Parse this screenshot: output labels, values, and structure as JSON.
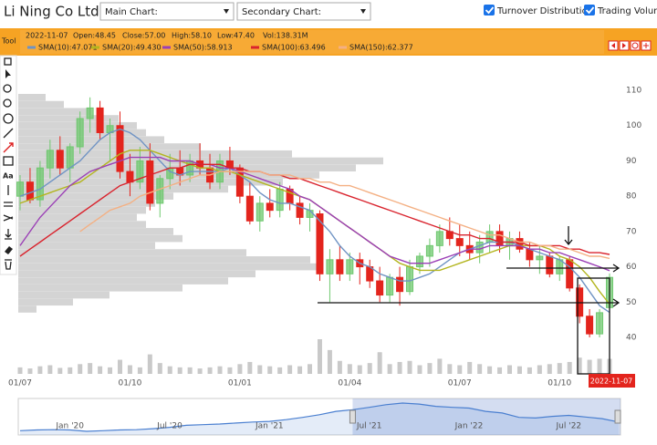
{
  "header": {
    "title": "Li Ning Co Ltd",
    "main_chart": "Main Chart:",
    "secondary_chart": "Secondary Chart:",
    "turnover_distribution": "Turnover Distribution",
    "trading_volume": "Trading Volume"
  },
  "toolbar": {
    "label": "Tool",
    "text_tool": "Aa"
  },
  "info_bar": {
    "date": "2022-11-07",
    "open": "Open:48.45",
    "close": "Close:57.00",
    "high": "High:58.10",
    "low": "Low:47.40",
    "volume": "Vol:138.31M"
  },
  "chart_data": [
    {
      "type": "candlestick",
      "categories": [
        "01/07",
        null,
        null,
        null,
        null,
        null,
        null,
        null,
        null,
        null,
        null,
        "01/10",
        null,
        null,
        null,
        null,
        null,
        null,
        null,
        null,
        null,
        null,
        "01/01",
        null,
        null,
        null,
        null,
        null,
        null,
        null,
        null,
        null,
        null,
        "01/04",
        null,
        null,
        null,
        null,
        null,
        null,
        null,
        null,
        null,
        null,
        "01/07",
        null,
        null,
        null,
        null,
        null,
        null,
        null,
        null,
        null,
        "01/10",
        null,
        null,
        null,
        null,
        null
      ],
      "open": [
        80,
        84,
        79,
        88,
        93,
        88,
        94,
        102,
        105,
        98,
        100,
        87,
        84,
        90,
        78,
        85,
        88,
        86,
        90,
        88,
        84,
        90,
        88,
        80,
        73,
        78,
        76,
        82,
        78,
        74,
        75,
        58,
        62,
        58,
        62,
        60,
        56,
        52,
        57,
        53,
        60,
        63,
        66,
        70,
        68,
        66,
        64,
        67,
        70,
        66,
        68,
        65,
        62,
        63,
        58,
        62,
        54,
        46,
        41,
        48.45
      ],
      "high": [
        86,
        88,
        90,
        96,
        97,
        95,
        104,
        108,
        107,
        102,
        104,
        92,
        94,
        95,
        86,
        92,
        93,
        92,
        95,
        92,
        92,
        94,
        89,
        84,
        80,
        82,
        84,
        83,
        80,
        78,
        76,
        65,
        66,
        64,
        64,
        62,
        60,
        58,
        60,
        62,
        64,
        68,
        72,
        74,
        72,
        70,
        69,
        72,
        72,
        70,
        70,
        67,
        66,
        64,
        63,
        63,
        55,
        48,
        48,
        58.1
      ],
      "low": [
        76,
        78,
        77,
        85,
        86,
        84,
        92,
        98,
        96,
        90,
        85,
        80,
        82,
        76,
        74,
        82,
        83,
        84,
        86,
        82,
        82,
        86,
        78,
        72,
        70,
        74,
        74,
        76,
        72,
        70,
        56,
        50,
        56,
        56,
        55,
        54,
        50,
        50,
        49,
        52,
        58,
        60,
        64,
        66,
        63,
        62,
        61,
        64,
        64,
        62,
        64,
        60,
        58,
        57,
        56,
        53,
        44,
        40,
        40,
        47.4
      ],
      "close": [
        84,
        79,
        88,
        93,
        88,
        94,
        102,
        105,
        98,
        100,
        87,
        84,
        90,
        78,
        85,
        88,
        86,
        90,
        88,
        84,
        90,
        88,
        80,
        73,
        78,
        76,
        82,
        78,
        74,
        76,
        58,
        62,
        58,
        62,
        60,
        56,
        52,
        57,
        53,
        60,
        63,
        66,
        70,
        68,
        66,
        64,
        67,
        70,
        66,
        68,
        65,
        62,
        63,
        58,
        62,
        54,
        46,
        41,
        47,
        57
      ],
      "up_color": "#6fc86f",
      "down_color": "#e3241d",
      "ylim": [
        30,
        112
      ],
      "yticks": [
        40,
        50,
        60,
        70,
        80,
        90,
        100,
        110
      ],
      "series": [
        {
          "name": "SMA(10):47.071",
          "color": "#6f93c4",
          "values": [
            80,
            81,
            82,
            84,
            86,
            88,
            90,
            93,
            96,
            98,
            99,
            98,
            96,
            93,
            90,
            87,
            86,
            87,
            87,
            87,
            87,
            88,
            86,
            84,
            81,
            79,
            78,
            78,
            77,
            76,
            73,
            70,
            66,
            63,
            61,
            60,
            58,
            57,
            56,
            56,
            57,
            58,
            60,
            62,
            64,
            65,
            66,
            67,
            67,
            67,
            66,
            65,
            64,
            63,
            62,
            60,
            57,
            53,
            49,
            47.071
          ]
        },
        {
          "name": "SMA(20):49.430",
          "color": "#b3b51e",
          "values": [
            78,
            79,
            80,
            81,
            82,
            83,
            84,
            86,
            88,
            90,
            92,
            93,
            93,
            93,
            92,
            91,
            90,
            89,
            88,
            88,
            87,
            87,
            86,
            85,
            84,
            83,
            82,
            81,
            80,
            79,
            77,
            75,
            73,
            71,
            69,
            67,
            65,
            63,
            61,
            60,
            59,
            59,
            59,
            60,
            61,
            62,
            63,
            64,
            65,
            66,
            66,
            66,
            66,
            65,
            63,
            62,
            60,
            57,
            53,
            49.43
          ]
        },
        {
          "name": "SMA(50):58.913",
          "color": "#9b3fb6",
          "values": [
            66,
            70,
            74,
            77,
            80,
            83,
            85,
            87,
            88,
            89,
            90,
            91,
            91,
            91,
            91,
            90,
            90,
            90,
            89,
            89,
            88,
            88,
            87,
            86,
            85,
            84,
            83,
            82,
            80,
            79,
            77,
            75,
            73,
            71,
            69,
            67,
            65,
            63,
            62,
            61,
            61,
            61,
            62,
            63,
            64,
            65,
            65,
            66,
            66,
            66,
            66,
            65,
            65,
            64,
            64,
            63,
            62,
            61,
            60,
            58.913
          ]
        },
        {
          "name": "SMA(100):63.496",
          "color": "#d9232d",
          "values": [
            63,
            65,
            67,
            69,
            71,
            73,
            75,
            77,
            79,
            81,
            83,
            84,
            85,
            86,
            87,
            88,
            88,
            89,
            89,
            89,
            89,
            88,
            88,
            87,
            87,
            86,
            86,
            85,
            85,
            84,
            83,
            82,
            81,
            80,
            79,
            78,
            77,
            76,
            75,
            74,
            73,
            72,
            71,
            70,
            69,
            69,
            68,
            68,
            67,
            67,
            67,
            66,
            66,
            66,
            66,
            65,
            65,
            64,
            64,
            63.496
          ]
        },
        {
          "name": "SMA(150):62.377",
          "color": "#f4b083",
          "values": [
            null,
            null,
            null,
            null,
            null,
            null,
            70,
            72,
            74,
            76,
            77,
            78,
            80,
            81,
            82,
            83,
            84,
            85,
            86,
            86,
            87,
            87,
            87,
            87,
            87,
            86,
            86,
            86,
            85,
            85,
            84,
            84,
            83,
            83,
            82,
            81,
            80,
            79,
            78,
            77,
            76,
            75,
            74,
            73,
            72,
            71,
            70,
            69,
            69,
            68,
            67,
            67,
            66,
            66,
            65,
            65,
            64,
            63,
            63,
            62.377
          ]
        }
      ],
      "volume": {
        "color": "#c9c9c9",
        "values": [
          60,
          50,
          70,
          80,
          55,
          60,
          90,
          100,
          70,
          60,
          130,
          80,
          60,
          180,
          100,
          70,
          60,
          60,
          50,
          60,
          70,
          60,
          90,
          110,
          80,
          70,
          60,
          80,
          70,
          90,
          320,
          220,
          120,
          90,
          80,
          100,
          200,
          90,
          110,
          120,
          80,
          100,
          140,
          90,
          80,
          110,
          90,
          70,
          60,
          80,
          70,
          60,
          80,
          90,
          100,
          110,
          150,
          130,
          140,
          138.31
        ]
      },
      "turnover_distribution": {
        "color": "#d4d4d4",
        "prices": [
          48,
          50,
          52,
          54,
          56,
          58,
          60,
          62,
          64,
          66,
          68,
          70,
          72,
          74,
          76,
          78,
          80,
          82,
          84,
          86,
          88,
          90,
          92,
          94,
          96,
          98,
          100,
          102,
          104,
          106,
          108
        ],
        "values": [
          20,
          60,
          100,
          180,
          230,
          260,
          330,
          320,
          250,
          150,
          180,
          170,
          140,
          130,
          140,
          150,
          170,
          230,
          290,
          330,
          370,
          400,
          300,
          200,
          160,
          140,
          130,
          110,
          80,
          50,
          30
        ]
      }
    },
    {
      "type": "area",
      "categories": [
        null,
        null,
        null,
        "Jan '20",
        null,
        null,
        null,
        null,
        null,
        "Jul '20",
        null,
        null,
        null,
        null,
        null,
        "Jan '21",
        null,
        null,
        null,
        null,
        null,
        "Jul '21",
        null,
        null,
        null,
        null,
        null,
        "Jan '22",
        null,
        null,
        null,
        null,
        null,
        "Jul '22",
        null,
        null,
        null
      ],
      "values": [
        22,
        24,
        25,
        24,
        20,
        22,
        24,
        25,
        28,
        32,
        38,
        40,
        42,
        45,
        48,
        50,
        55,
        62,
        70,
        80,
        85,
        92,
        100,
        105,
        102,
        95,
        92,
        90,
        80,
        75,
        62,
        60,
        65,
        68,
        63,
        58,
        48
      ],
      "color": "#4a7fd0"
    }
  ]
}
